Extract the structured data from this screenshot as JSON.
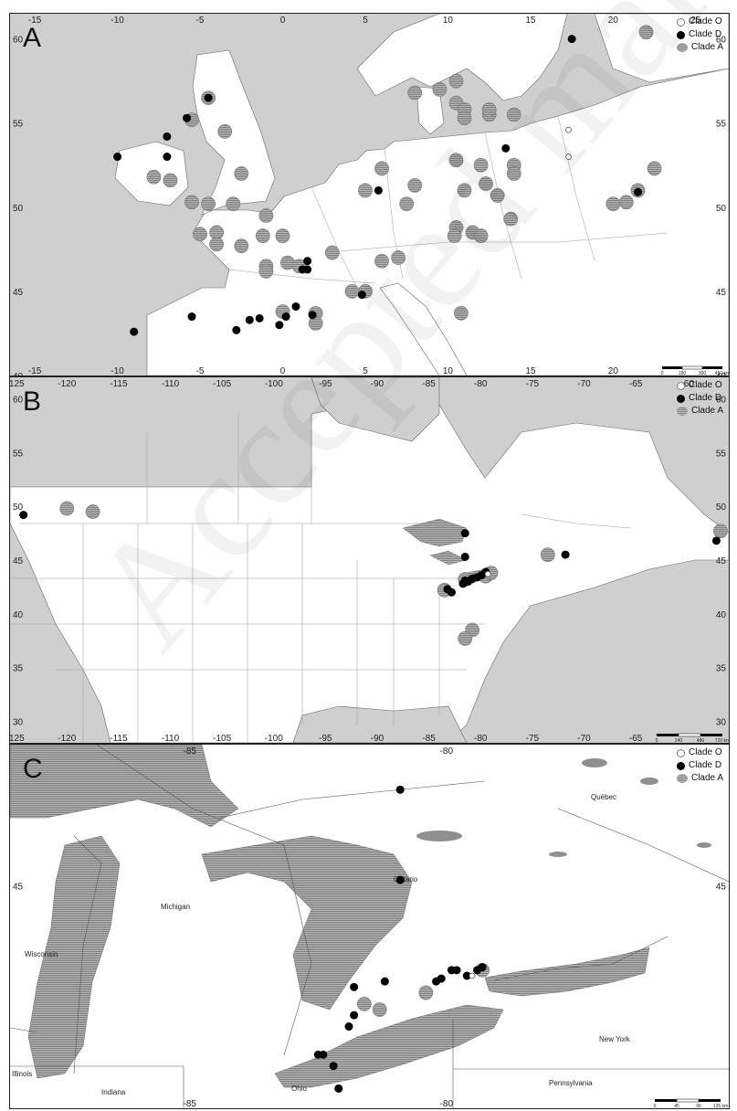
{
  "legend": {
    "clade_o": "Clade O",
    "clade_d": "Clade D",
    "clade_a": "Clade A"
  },
  "colors": {
    "sea": "#cfcfcf",
    "land": "#ffffff",
    "clade_d": "#000000",
    "clade_a": "#8f8f8f",
    "lake": "#8f8f8f"
  },
  "watermark": "Accepted manuscript",
  "panels": {
    "a": {
      "letter": "A",
      "top_ticks": [
        "-15",
        "-10",
        "-5",
        "0",
        "5",
        "10",
        "15",
        "20",
        "25"
      ],
      "bottom_ticks": [
        "-15",
        "-10",
        "-5",
        "0",
        "5",
        "10",
        "15",
        "20"
      ],
      "left_ticks": [
        "60",
        "55",
        "50",
        "45",
        "40"
      ],
      "right_ticks": [
        "60",
        "55",
        "50",
        "45",
        "40"
      ],
      "scale": [
        "0",
        "150",
        "300",
        "450 km"
      ]
    },
    "b": {
      "letter": "B",
      "top_ticks": [
        "-125",
        "-120",
        "-115",
        "-110",
        "-105",
        "-100",
        "-95",
        "-90",
        "-85",
        "-80",
        "-75",
        "-70",
        "-65",
        "-60"
      ],
      "bottom_ticks": [
        "-125",
        "-120",
        "-115",
        "-110",
        "-105",
        "-100",
        "-95",
        "-90",
        "-85",
        "-80",
        "-75",
        "-70",
        "-65"
      ],
      "left_ticks": [
        "60",
        "55",
        "50",
        "45",
        "40",
        "35",
        "30"
      ],
      "right_ticks": [
        "60",
        "55",
        "50",
        "45",
        "40",
        "35",
        "30"
      ],
      "scale": [
        "0",
        "240",
        "480",
        "720 km"
      ]
    },
    "c": {
      "letter": "C",
      "top_ticks": [
        "-85",
        "-80"
      ],
      "bottom_ticks": [
        "-85",
        "-80"
      ],
      "left_ticks": [
        "45"
      ],
      "right_ticks": [
        "45"
      ],
      "places": [
        "Québec",
        "Ontario",
        "Michigan",
        "Wisconsin",
        "New York",
        "Illinois",
        "Indiana",
        "Ohio",
        "Pennsylvania"
      ],
      "scale": [
        "0",
        "45",
        "90",
        "135 km"
      ]
    }
  },
  "points": {
    "a": {
      "clade_a": [
        [
          -4.5,
          56.5
        ],
        [
          -5.5,
          55.2
        ],
        [
          -7.8,
          51.8
        ],
        [
          -6.8,
          51.6
        ],
        [
          -3.5,
          54.5
        ],
        [
          -2.5,
          52
        ],
        [
          -5.5,
          50.3
        ],
        [
          -4.5,
          50.2
        ],
        [
          -3,
          50.2
        ],
        [
          -1,
          49.5
        ],
        [
          -5,
          48.4
        ],
        [
          -4,
          48.5
        ],
        [
          -4,
          47.8
        ],
        [
          -2.5,
          47.7
        ],
        [
          -1.2,
          48.3
        ],
        [
          0,
          48.3
        ],
        [
          -1,
          46.5
        ],
        [
          -1,
          46.2
        ],
        [
          0,
          43.8
        ],
        [
          2,
          43.7
        ],
        [
          2,
          43.1
        ],
        [
          0.3,
          46.7
        ],
        [
          1,
          46.5
        ],
        [
          3,
          47.3
        ],
        [
          4.2,
          45
        ],
        [
          5,
          45
        ],
        [
          6,
          46.8
        ],
        [
          7,
          47
        ],
        [
          7.5,
          50.2
        ],
        [
          8,
          51.3
        ],
        [
          8,
          56.8
        ],
        [
          9.5,
          57
        ],
        [
          10.5,
          57.5
        ],
        [
          10.5,
          56.2
        ],
        [
          11,
          55.8
        ],
        [
          11,
          55.3
        ],
        [
          12.5,
          55.5
        ],
        [
          12.5,
          55.8
        ],
        [
          14,
          55.5
        ],
        [
          10.5,
          52.8
        ],
        [
          11,
          51
        ],
        [
          12,
          52.5
        ],
        [
          12.3,
          51.4
        ],
        [
          13,
          50.7
        ],
        [
          10.5,
          48.8
        ],
        [
          10.4,
          48.3
        ],
        [
          11.5,
          48.5
        ],
        [
          12,
          48.3
        ],
        [
          14,
          52.5
        ],
        [
          14,
          52
        ],
        [
          20,
          50.2
        ],
        [
          20.8,
          50.3
        ],
        [
          22.5,
          52.3
        ],
        [
          21.5,
          51
        ],
        [
          22,
          60.4
        ],
        [
          10.8,
          43.7
        ],
        [
          6,
          52.3
        ],
        [
          5,
          51
        ],
        [
          13.8,
          49.3
        ]
      ],
      "clade_d": [
        [
          -10,
          53
        ],
        [
          -7,
          54.2
        ],
        [
          -7,
          53
        ],
        [
          -5.8,
          55.3
        ],
        [
          -4.5,
          56.5
        ],
        [
          -5.5,
          43.5
        ],
        [
          -9,
          42.6
        ],
        [
          -2.8,
          42.7
        ],
        [
          -2,
          43.3
        ],
        [
          -1.4,
          43.4
        ],
        [
          -0.2,
          43
        ],
        [
          0.2,
          43.5
        ],
        [
          0.8,
          44.1
        ],
        [
          1.8,
          43.6
        ],
        [
          5.8,
          51
        ],
        [
          4.8,
          44.8
        ],
        [
          1.5,
          46.8
        ],
        [
          1.5,
          46.3
        ],
        [
          1.2,
          46.3
        ],
        [
          13.5,
          53.5
        ],
        [
          17.5,
          60
        ],
        [
          21.5,
          50.9
        ]
      ],
      "clade_o": [
        [
          17.3,
          54.6
        ],
        [
          17.3,
          53
        ]
      ]
    },
    "b": {
      "clade_a": [
        [
          -120,
          49.8
        ],
        [
          -117.5,
          49.5
        ],
        [
          -73.5,
          45.5
        ],
        [
          -56.8,
          47.7
        ],
        [
          -83.5,
          42.2
        ],
        [
          -81.5,
          43.2
        ],
        [
          -79.5,
          43.5
        ],
        [
          -80.8,
          38.5
        ],
        [
          -81.5,
          37.7
        ],
        [
          -79,
          43.8
        ]
      ],
      "clade_d": [
        [
          -124.2,
          49.2
        ],
        [
          -81.5,
          47.5
        ],
        [
          -81.5,
          45.3
        ],
        [
          -83.2,
          42.3
        ],
        [
          -82.8,
          42
        ],
        [
          -81.7,
          42.8
        ],
        [
          -81.5,
          43.1
        ],
        [
          -81.2,
          43
        ],
        [
          -80.9,
          43.2
        ],
        [
          -80.7,
          43.3
        ],
        [
          -80.3,
          43.4
        ],
        [
          -79.9,
          43.6
        ],
        [
          -79.5,
          43.9
        ],
        [
          -71.8,
          45.5
        ],
        [
          -57.2,
          46.8
        ]
      ],
      "clade_o": [
        [
          -79.3,
          43.7
        ]
      ]
    },
    "c": {
      "clade_a": [
        [
          -81.6,
          42.9
        ],
        [
          -81.3,
          42.8
        ],
        [
          -80.4,
          43.1
        ],
        [
          -79.3,
          43.5
        ]
      ],
      "clade_d": [
        [
          -80.9,
          46.7
        ],
        [
          -80.9,
          45.1
        ],
        [
          -81.8,
          43.2
        ],
        [
          -81.8,
          42.7
        ],
        [
          -81.9,
          42.5
        ],
        [
          -82.4,
          42
        ],
        [
          -82.5,
          42
        ],
        [
          -82.2,
          41.8
        ],
        [
          -80.1,
          43.35
        ],
        [
          -80.2,
          43.3
        ],
        [
          -79.9,
          43.5
        ],
        [
          -79.8,
          43.5
        ],
        [
          -79.6,
          43.4
        ],
        [
          -79.3,
          43.55
        ],
        [
          -79.4,
          43.5
        ],
        [
          -82.1,
          41.4
        ],
        [
          -81.2,
          43.3
        ]
      ],
      "clade_o": [
        [
          -79.5,
          43.4
        ]
      ]
    }
  }
}
